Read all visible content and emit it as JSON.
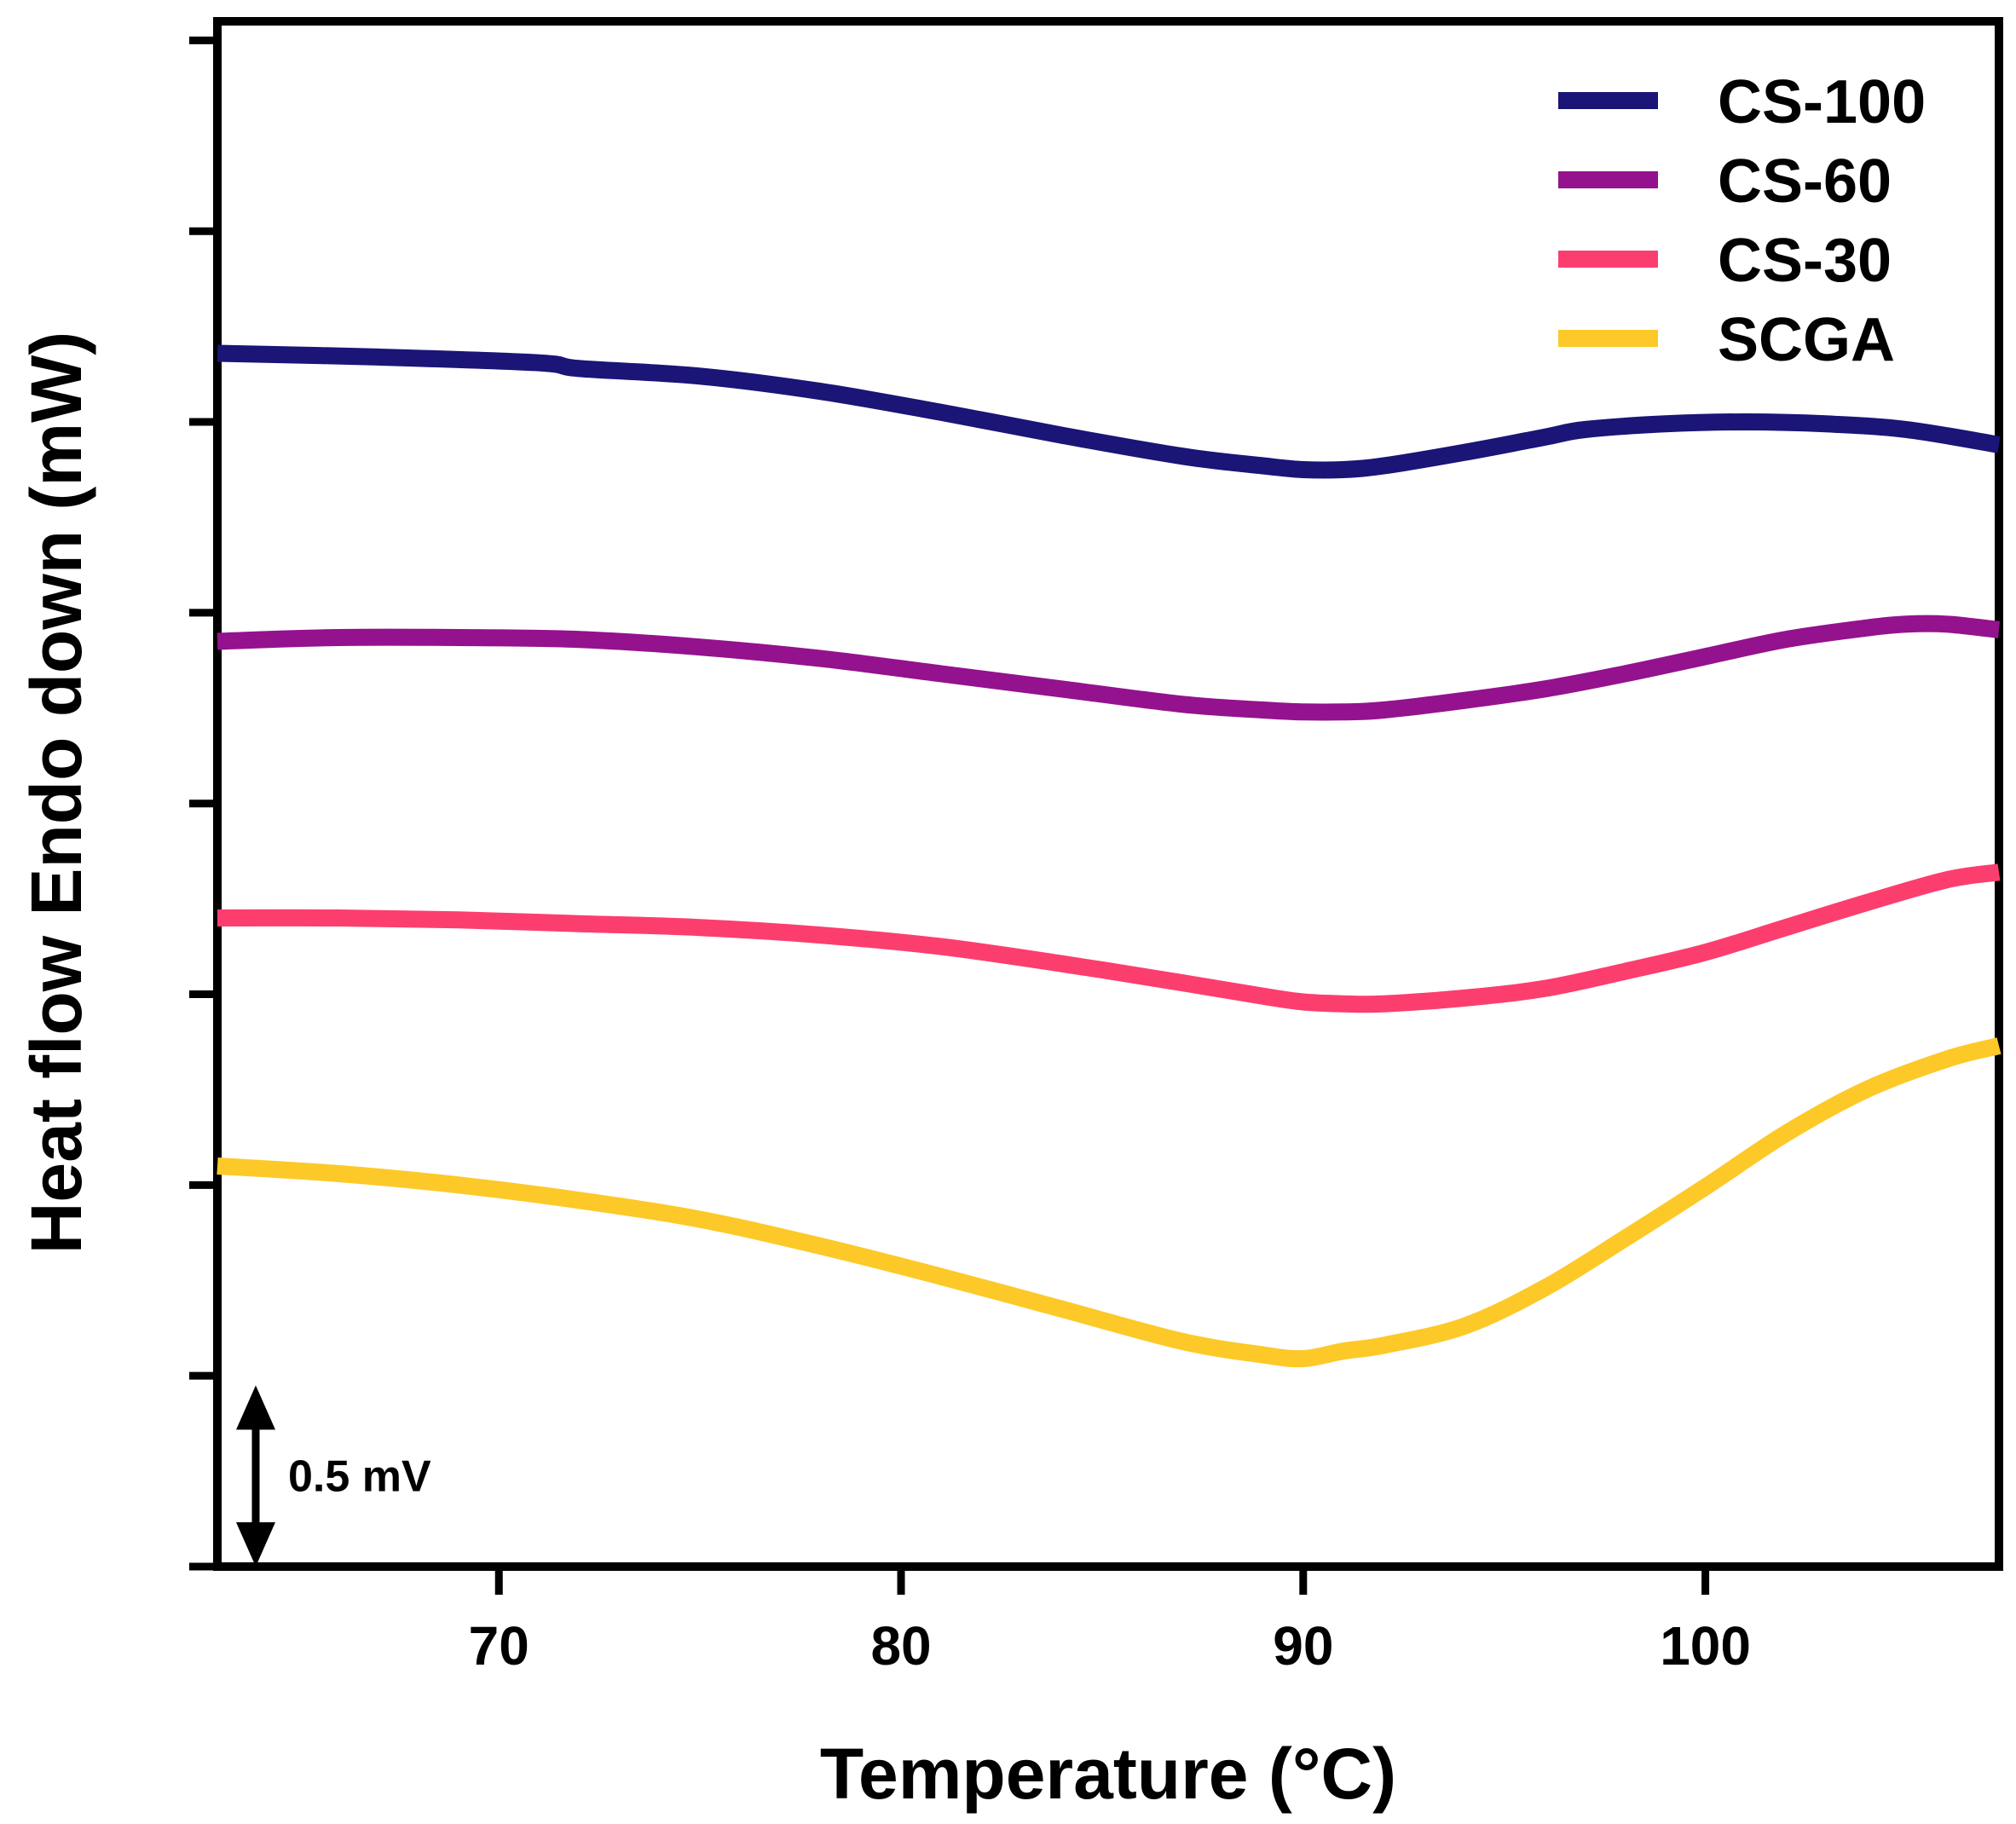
{
  "chart_data": {
    "type": "line",
    "title": "",
    "xlabel": "Temperature (°C)",
    "ylabel": "Heat flow Endo down (mW)",
    "xlim": [
      63,
      107.3
    ],
    "ylim": [
      0,
      8.1
    ],
    "grid": false,
    "legend_position": "top-right",
    "x_ticks": [
      70,
      80,
      90,
      100
    ],
    "x_tick_labels": [
      "70",
      "80",
      "90",
      "100"
    ],
    "y_ticks": [
      0,
      1,
      2,
      3,
      4,
      5,
      6,
      7,
      8
    ],
    "y_tick_labels": [
      "",
      "",
      "",
      "",
      "",
      "",
      "",
      "",
      ""
    ],
    "scale_bar": {
      "label": "0.5 mV",
      "from": 0,
      "to": 0.95
    },
    "series": [
      {
        "name": "CS-100",
        "color": "#1a1577",
        "x": [
          63,
          67,
          71,
          72,
          75,
          78,
          81,
          84,
          87,
          89,
          90,
          91,
          92,
          94,
          96,
          97,
          99,
          101,
          103,
          105,
          107.3
        ],
        "y": [
          6.36,
          6.34,
          6.31,
          6.28,
          6.24,
          6.16,
          6.05,
          5.93,
          5.82,
          5.77,
          5.75,
          5.75,
          5.77,
          5.84,
          5.92,
          5.96,
          5.99,
          6.0,
          5.99,
          5.96,
          5.88
        ]
      },
      {
        "name": "CS-60",
        "color": "#94128e",
        "x": [
          63,
          66,
          69,
          72,
          75,
          78,
          81,
          84,
          87,
          89,
          90,
          91,
          92,
          94,
          96,
          98,
          100,
          102,
          104,
          105,
          106,
          107.3
        ],
        "y": [
          4.85,
          4.87,
          4.87,
          4.86,
          4.82,
          4.76,
          4.68,
          4.6,
          4.52,
          4.49,
          4.48,
          4.48,
          4.49,
          4.54,
          4.6,
          4.68,
          4.77,
          4.86,
          4.92,
          4.94,
          4.94,
          4.91
        ]
      },
      {
        "name": "CS-30",
        "color": "#fc3e6e",
        "x": [
          63,
          66,
          69,
          72,
          75,
          78,
          81,
          84,
          87,
          89,
          90,
          91,
          92,
          94,
          96,
          98,
          100,
          102,
          104,
          106,
          107.3
        ],
        "y": [
          3.4,
          3.4,
          3.39,
          3.37,
          3.35,
          3.31,
          3.25,
          3.16,
          3.06,
          2.99,
          2.96,
          2.95,
          2.95,
          2.98,
          3.03,
          3.12,
          3.22,
          3.35,
          3.48,
          3.6,
          3.64
        ]
      },
      {
        "name": "SCGA",
        "color": "#fcc928",
        "x": [
          63,
          66,
          69,
          72,
          75,
          78,
          81,
          84,
          87,
          89,
          90,
          91,
          92,
          94,
          96,
          98,
          100,
          102,
          104,
          106,
          107.3
        ],
        "y": [
          2.1,
          2.06,
          2.0,
          1.92,
          1.82,
          1.68,
          1.52,
          1.35,
          1.18,
          1.11,
          1.09,
          1.13,
          1.16,
          1.26,
          1.46,
          1.72,
          1.99,
          2.27,
          2.5,
          2.66,
          2.73
        ]
      }
    ]
  }
}
